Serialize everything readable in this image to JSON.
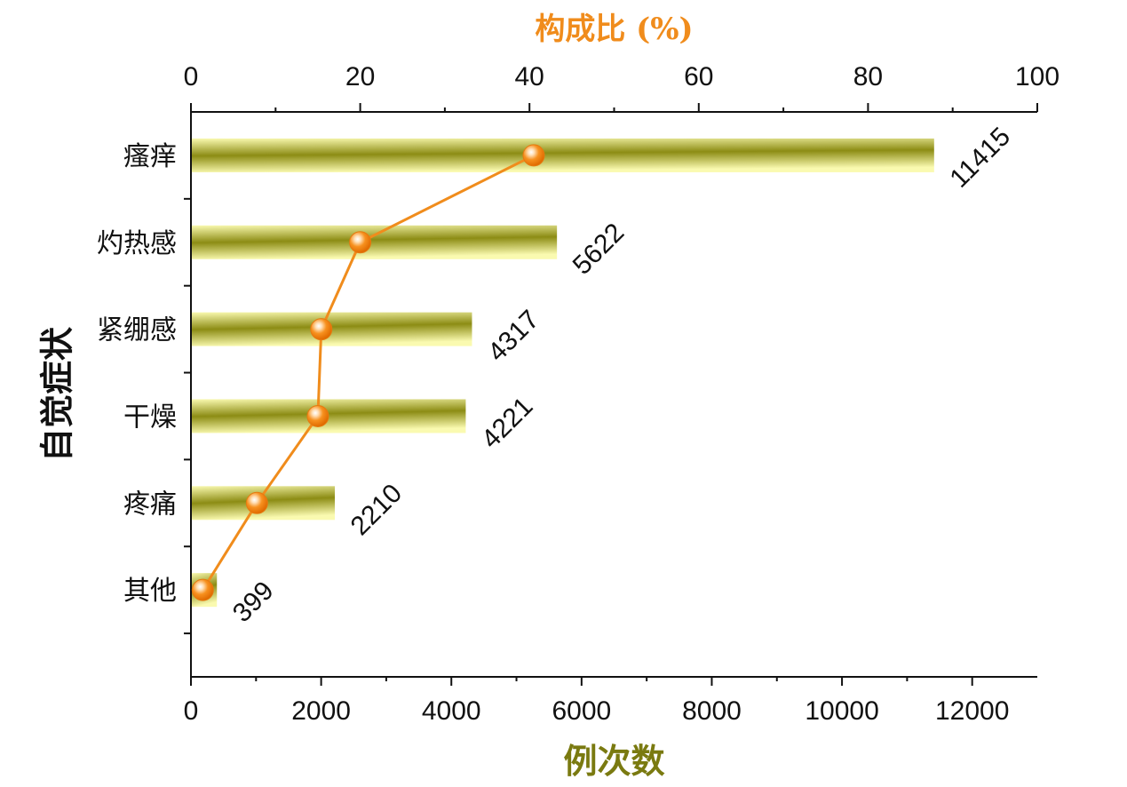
{
  "chart_data": {
    "type": "bar",
    "orientation": "horizontal",
    "categories": [
      "瘙痒",
      "灼热感",
      "紧绷感",
      "干燥",
      "疼痛",
      "其他"
    ],
    "series": [
      {
        "axis": "bottom",
        "type": "bar",
        "values": [
          11415,
          5622,
          4317,
          4221,
          2210,
          399
        ]
      },
      {
        "axis": "top",
        "type": "line",
        "values": [
          40.5,
          20.0,
          15.4,
          15.0,
          7.8,
          1.4
        ]
      }
    ],
    "data_labels": [
      "11415",
      "5622",
      "4317",
      "4221",
      "2210",
      "399"
    ],
    "xlabel": "例次数",
    "ylabel": "自觉症状",
    "top_axis_label": "构成比 (%)",
    "xlim": [
      0,
      13000
    ],
    "top_lim": [
      0,
      100
    ],
    "x_ticks": [
      "0",
      "2000",
      "4000",
      "6000",
      "8000",
      "10000",
      "12000"
    ],
    "top_ticks": [
      "0",
      "20",
      "40",
      "60",
      "80",
      "100"
    ],
    "grid": false,
    "colors": {
      "bar_light": "#f8f8a0",
      "bar_dark": "#8c8c14",
      "line": "#f08c1c",
      "marker": "#f5841c",
      "top_axis_label": "#f08c1c",
      "x_axis_label": "#7a7a10"
    }
  }
}
